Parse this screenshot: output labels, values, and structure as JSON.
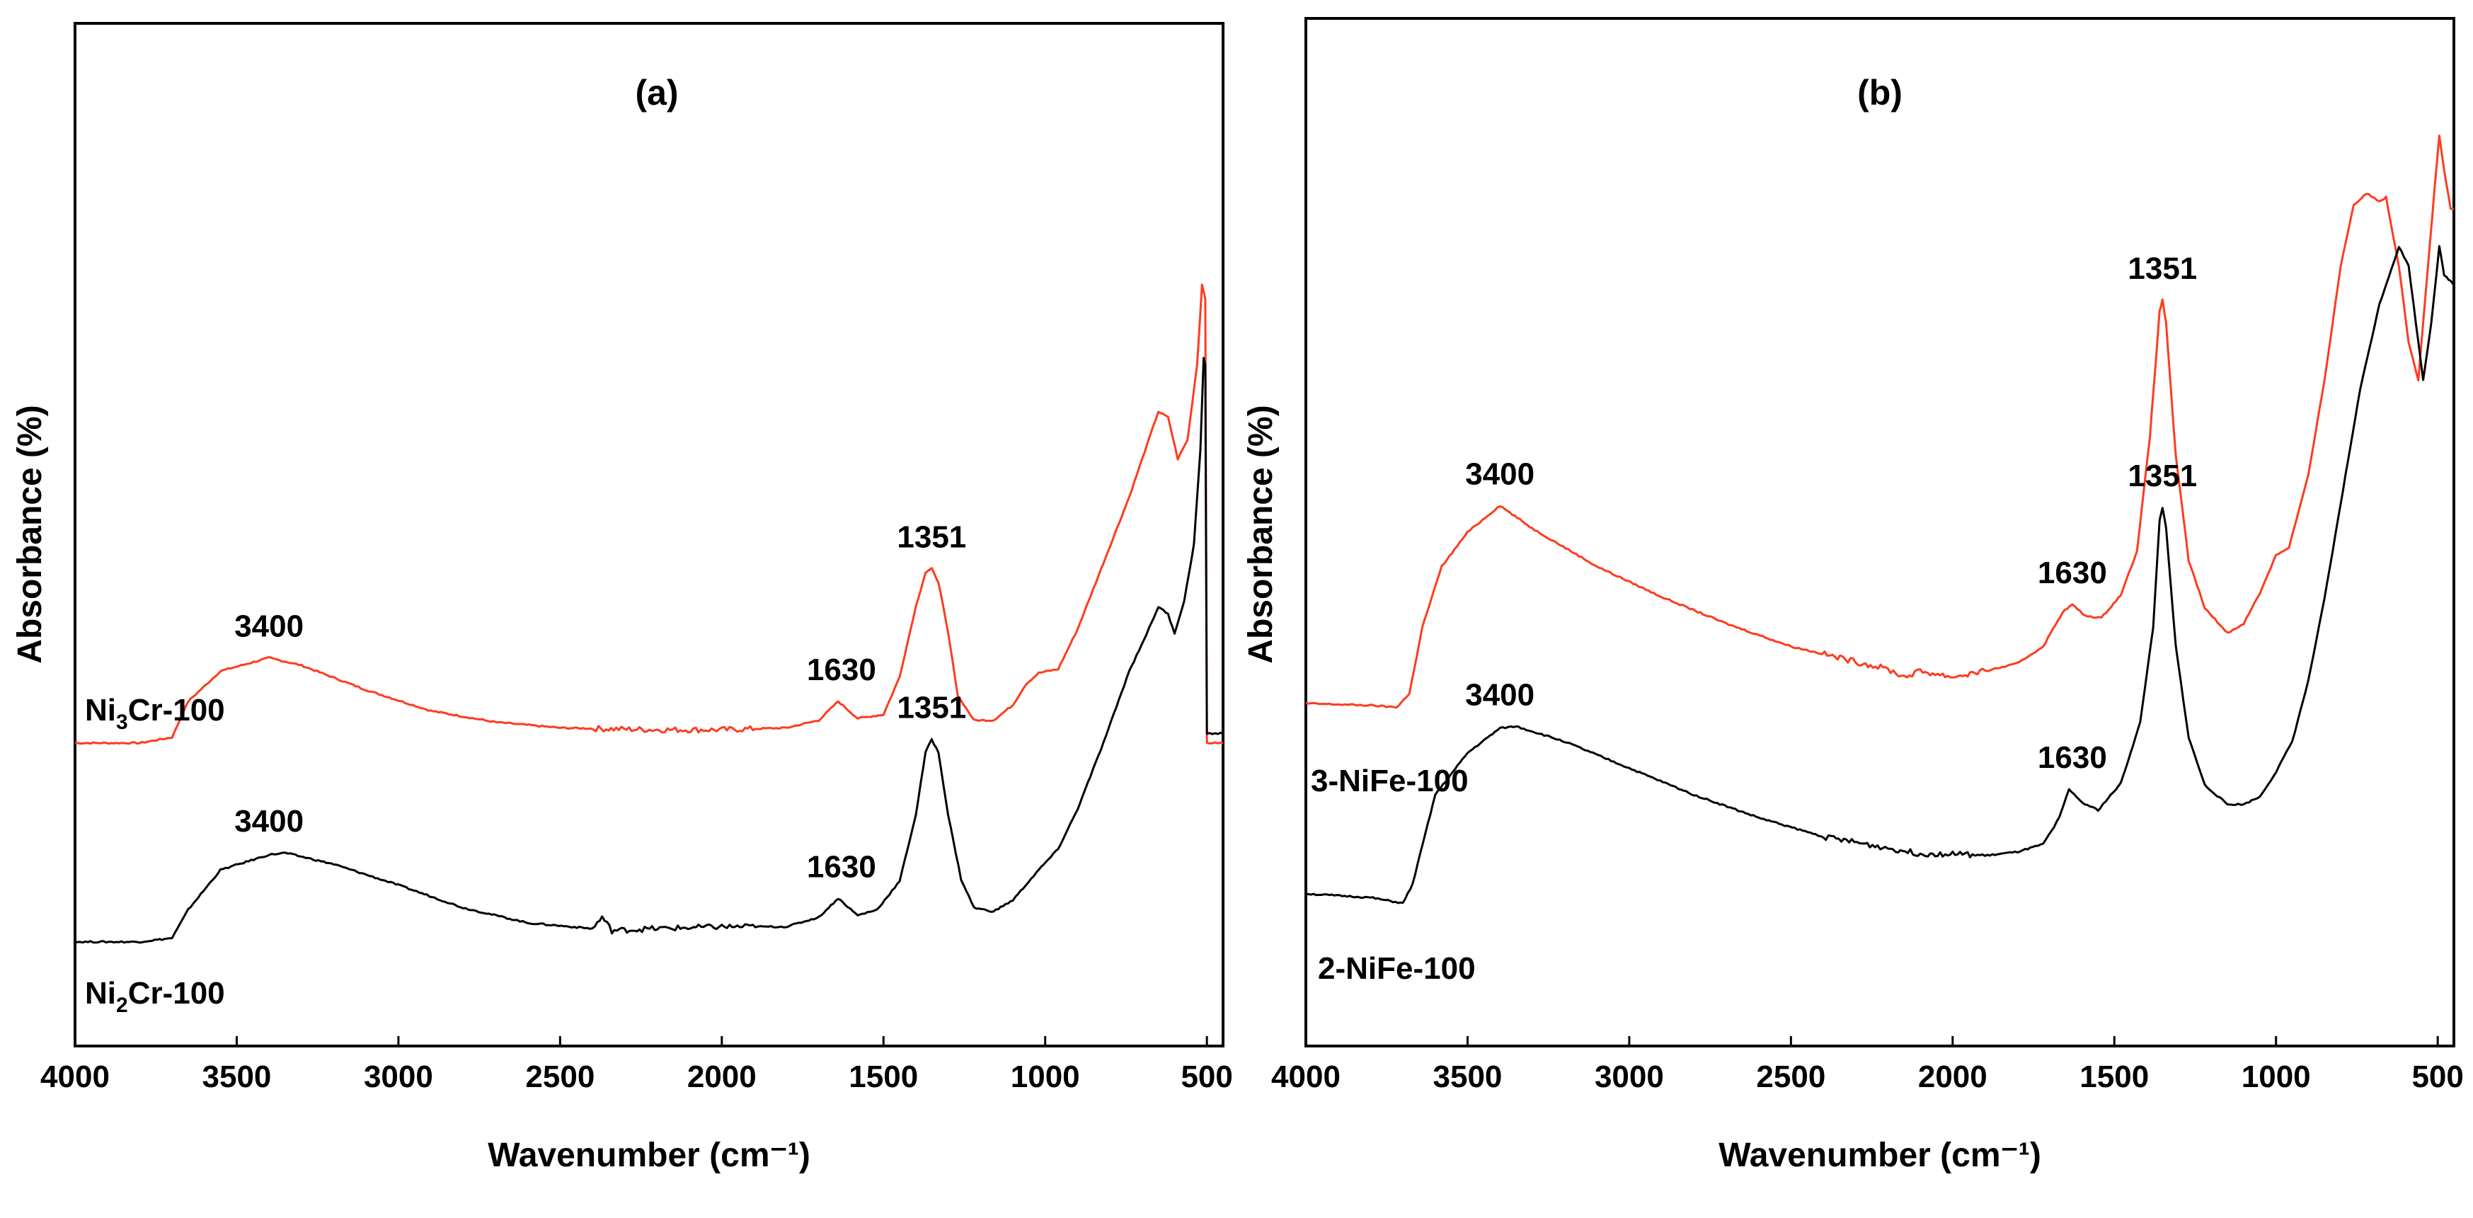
{
  "chart_data": [
    {
      "type": "line",
      "panel_tag": "(a)",
      "xlabel": "Wavenumber (cm⁻¹)",
      "ylabel": "Absorbance (%)",
      "xlim": [
        4000,
        450
      ],
      "ylim": [
        -1.1,
        4.3
      ],
      "x_ticks": [
        4000,
        3500,
        3000,
        2500,
        2000,
        1500,
        1000,
        500
      ],
      "x_tick_labels": [
        "4000",
        "3500",
        "3000",
        "2500",
        "2000",
        "1500",
        "1000",
        "500"
      ],
      "grid": false,
      "series": [
        {
          "name": "Ni3Cr-100",
          "label_text": "Ni",
          "label_sub": "3",
          "label_rest": "Cr-100",
          "color": "#ff3b1f",
          "points": [
            [
              4000,
              0.5
            ],
            [
              3800,
              0.5
            ],
            [
              3700,
              0.53
            ],
            [
              3650,
              0.72
            ],
            [
              3550,
              0.88
            ],
            [
              3400,
              0.95
            ],
            [
              3300,
              0.91
            ],
            [
              3100,
              0.78
            ],
            [
              2900,
              0.67
            ],
            [
              2700,
              0.61
            ],
            [
              2500,
              0.58
            ],
            [
              2200,
              0.57
            ],
            [
              2000,
              0.57
            ],
            [
              1800,
              0.58
            ],
            [
              1700,
              0.62
            ],
            [
              1640,
              0.72
            ],
            [
              1580,
              0.63
            ],
            [
              1500,
              0.65
            ],
            [
              1450,
              0.85
            ],
            [
              1400,
              1.22
            ],
            [
              1370,
              1.4
            ],
            [
              1351,
              1.42
            ],
            [
              1330,
              1.35
            ],
            [
              1300,
              1.08
            ],
            [
              1270,
              0.75
            ],
            [
              1220,
              0.62
            ],
            [
              1160,
              0.62
            ],
            [
              1100,
              0.7
            ],
            [
              1060,
              0.81
            ],
            [
              1020,
              0.87
            ],
            [
              960,
              0.89
            ],
            [
              900,
              1.1
            ],
            [
              820,
              1.45
            ],
            [
              740,
              1.8
            ],
            [
              700,
              2.0
            ],
            [
              650,
              2.25
            ],
            [
              620,
              2.22
            ],
            [
              590,
              2.0
            ],
            [
              560,
              2.1
            ],
            [
              530,
              2.5
            ],
            [
              515,
              2.92
            ],
            [
              505,
              2.85
            ],
            [
              500,
              0.5
            ],
            [
              450,
              0.5
            ]
          ],
          "peaks": [
            {
              "x": 3400,
              "y": 0.95,
              "label": "3400"
            },
            {
              "x": 1630,
              "y": 0.72,
              "label": "1630"
            },
            {
              "x": 1351,
              "y": 1.42,
              "label": "1351"
            }
          ]
        },
        {
          "name": "Ni2Cr-100",
          "label_text": "Ni",
          "label_sub": "2",
          "label_rest": "Cr-100",
          "color": "#000000",
          "points": [
            [
              4000,
              -0.55
            ],
            [
              3800,
              -0.55
            ],
            [
              3700,
              -0.53
            ],
            [
              3650,
              -0.38
            ],
            [
              3550,
              -0.17
            ],
            [
              3400,
              -0.09
            ],
            [
              3350,
              -0.08
            ],
            [
              3200,
              -0.14
            ],
            [
              3000,
              -0.25
            ],
            [
              2800,
              -0.37
            ],
            [
              2600,
              -0.45
            ],
            [
              2400,
              -0.48
            ],
            [
              2370,
              -0.42
            ],
            [
              2340,
              -0.49
            ],
            [
              2200,
              -0.48
            ],
            [
              2000,
              -0.47
            ],
            [
              1800,
              -0.47
            ],
            [
              1700,
              -0.42
            ],
            [
              1640,
              -0.32
            ],
            [
              1580,
              -0.41
            ],
            [
              1520,
              -0.38
            ],
            [
              1450,
              -0.23
            ],
            [
              1400,
              0.12
            ],
            [
              1370,
              0.45
            ],
            [
              1351,
              0.52
            ],
            [
              1330,
              0.45
            ],
            [
              1300,
              0.12
            ],
            [
              1260,
              -0.22
            ],
            [
              1220,
              -0.37
            ],
            [
              1160,
              -0.39
            ],
            [
              1100,
              -0.33
            ],
            [
              1060,
              -0.25
            ],
            [
              1020,
              -0.17
            ],
            [
              960,
              -0.06
            ],
            [
              900,
              0.15
            ],
            [
              820,
              0.5
            ],
            [
              740,
              0.88
            ],
            [
              680,
              1.1
            ],
            [
              650,
              1.22
            ],
            [
              620,
              1.18
            ],
            [
              600,
              1.08
            ],
            [
              570,
              1.25
            ],
            [
              540,
              1.55
            ],
            [
              520,
              2.05
            ],
            [
              510,
              2.53
            ],
            [
              505,
              2.5
            ],
            [
              500,
              0.55
            ],
            [
              450,
              0.55
            ]
          ],
          "peaks": [
            {
              "x": 3400,
              "y": -0.08,
              "label": "3400"
            },
            {
              "x": 1630,
              "y": -0.32,
              "label": "1630"
            },
            {
              "x": 1351,
              "y": 0.52,
              "label": "1351"
            }
          ]
        }
      ]
    },
    {
      "type": "line",
      "panel_tag": "(b)",
      "xlabel": "Wavenumber (cm⁻¹)",
      "ylabel": "Absorbance (%)",
      "xlim": [
        4000,
        450
      ],
      "ylim": [
        -0.8,
        4.6
      ],
      "x_ticks": [
        4000,
        3500,
        3000,
        2500,
        2000,
        1500,
        1000,
        500
      ],
      "x_tick_labels": [
        "4000",
        "3500",
        "3000",
        "2500",
        "2000",
        "1500",
        "1000",
        "500"
      ],
      "grid": false,
      "series": [
        {
          "name": "3-NiFe-100",
          "label_text": "3-NiFe-100",
          "color": "#ff3b1f",
          "points": [
            [
              4000,
              1.0
            ],
            [
              3800,
              0.99
            ],
            [
              3720,
              0.98
            ],
            [
              3680,
              1.05
            ],
            [
              3640,
              1.4
            ],
            [
              3580,
              1.72
            ],
            [
              3500,
              1.9
            ],
            [
              3400,
              2.04
            ],
            [
              3300,
              1.92
            ],
            [
              3100,
              1.72
            ],
            [
              2900,
              1.56
            ],
            [
              2700,
              1.42
            ],
            [
              2500,
              1.3
            ],
            [
              2300,
              1.22
            ],
            [
              2200,
              1.18
            ],
            [
              2150,
              1.14
            ],
            [
              2100,
              1.17
            ],
            [
              2000,
              1.14
            ],
            [
              1900,
              1.17
            ],
            [
              1800,
              1.21
            ],
            [
              1720,
              1.3
            ],
            [
              1660,
              1.48
            ],
            [
              1630,
              1.52
            ],
            [
              1590,
              1.46
            ],
            [
              1540,
              1.45
            ],
            [
              1480,
              1.57
            ],
            [
              1430,
              1.8
            ],
            [
              1390,
              2.4
            ],
            [
              1360,
              3.06
            ],
            [
              1351,
              3.12
            ],
            [
              1340,
              3.0
            ],
            [
              1310,
              2.3
            ],
            [
              1270,
              1.75
            ],
            [
              1220,
              1.5
            ],
            [
              1150,
              1.37
            ],
            [
              1100,
              1.42
            ],
            [
              1050,
              1.58
            ],
            [
              1000,
              1.78
            ],
            [
              960,
              1.82
            ],
            [
              900,
              2.2
            ],
            [
              850,
              2.7
            ],
            [
              800,
              3.3
            ],
            [
              760,
              3.62
            ],
            [
              720,
              3.68
            ],
            [
              680,
              3.64
            ],
            [
              660,
              3.66
            ],
            [
              620,
              3.3
            ],
            [
              590,
              2.9
            ],
            [
              560,
              2.7
            ],
            [
              540,
              3.1
            ],
            [
              510,
              3.7
            ],
            [
              495,
              3.98
            ],
            [
              480,
              3.8
            ],
            [
              460,
              3.6
            ],
            [
              450,
              3.6
            ]
          ],
          "peaks": [
            {
              "x": 3400,
              "y": 2.04,
              "label": "3400"
            },
            {
              "x": 1630,
              "y": 1.52,
              "label": "1630"
            },
            {
              "x": 1351,
              "y": 3.12,
              "label": "1351"
            }
          ]
        },
        {
          "name": "2-NiFe-100",
          "label_text": "2-NiFe-100",
          "color": "#000000",
          "points": [
            [
              4000,
              0.0
            ],
            [
              3800,
              -0.02
            ],
            [
              3700,
              -0.05
            ],
            [
              3670,
              0.05
            ],
            [
              3600,
              0.52
            ],
            [
              3500,
              0.74
            ],
            [
              3400,
              0.87
            ],
            [
              3350,
              0.88
            ],
            [
              3200,
              0.8
            ],
            [
              3000,
              0.66
            ],
            [
              2800,
              0.52
            ],
            [
              2600,
              0.4
            ],
            [
              2400,
              0.3
            ],
            [
              2200,
              0.24
            ],
            [
              2100,
              0.21
            ],
            [
              2000,
              0.21
            ],
            [
              1900,
              0.2
            ],
            [
              1800,
              0.22
            ],
            [
              1720,
              0.26
            ],
            [
              1670,
              0.4
            ],
            [
              1640,
              0.55
            ],
            [
              1600,
              0.48
            ],
            [
              1550,
              0.44
            ],
            [
              1480,
              0.58
            ],
            [
              1420,
              0.9
            ],
            [
              1380,
              1.4
            ],
            [
              1360,
              1.96
            ],
            [
              1351,
              2.03
            ],
            [
              1340,
              1.92
            ],
            [
              1310,
              1.3
            ],
            [
              1270,
              0.82
            ],
            [
              1220,
              0.57
            ],
            [
              1150,
              0.47
            ],
            [
              1100,
              0.47
            ],
            [
              1050,
              0.51
            ],
            [
              1000,
              0.64
            ],
            [
              950,
              0.8
            ],
            [
              900,
              1.12
            ],
            [
              850,
              1.55
            ],
            [
              800,
              2.05
            ],
            [
              740,
              2.65
            ],
            [
              680,
              3.1
            ],
            [
              620,
              3.4
            ],
            [
              590,
              3.3
            ],
            [
              560,
              2.9
            ],
            [
              545,
              2.7
            ],
            [
              520,
              3.0
            ],
            [
              495,
              3.4
            ],
            [
              480,
              3.25
            ],
            [
              460,
              3.22
            ],
            [
              450,
              3.2
            ]
          ],
          "peaks": [
            {
              "x": 3400,
              "y": 0.88,
              "label": "3400"
            },
            {
              "x": 1630,
              "y": 0.55,
              "label": "1630"
            },
            {
              "x": 1351,
              "y": 2.03,
              "label": "1351"
            }
          ]
        }
      ]
    }
  ]
}
